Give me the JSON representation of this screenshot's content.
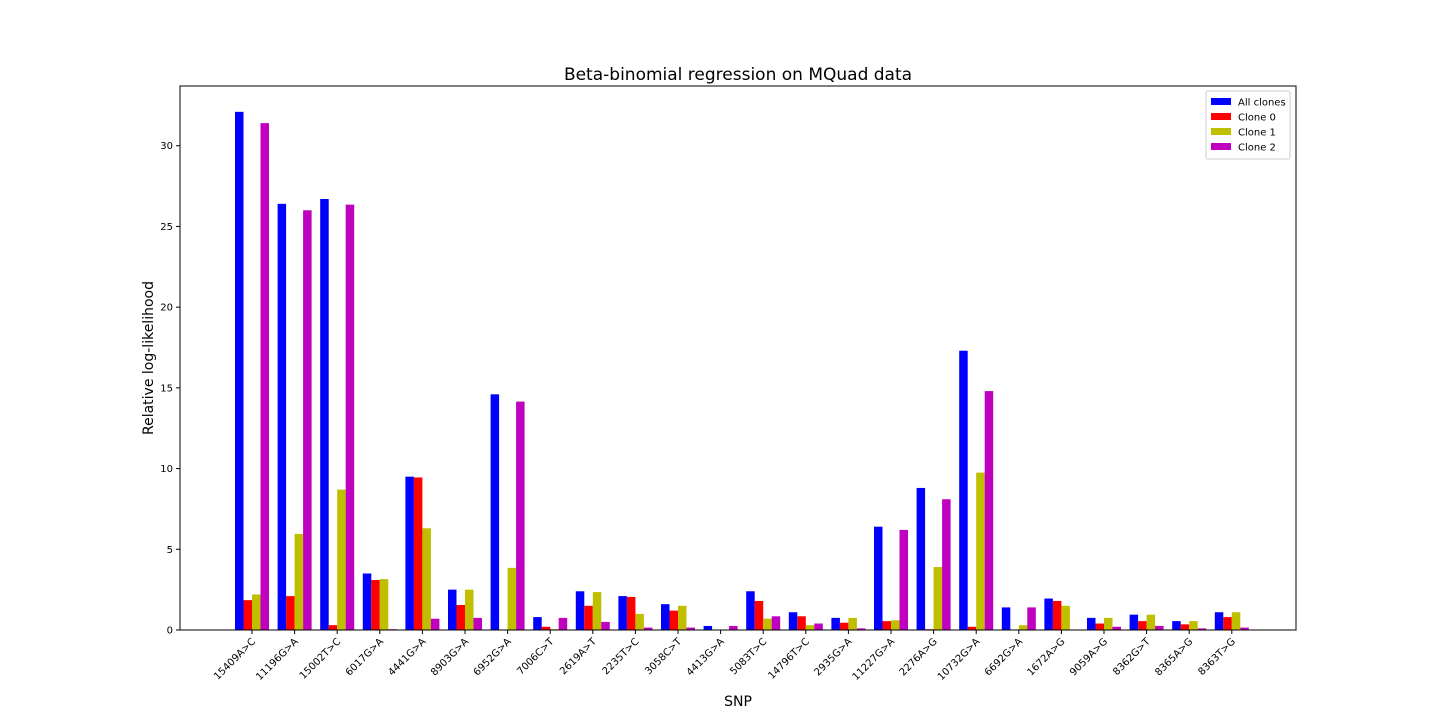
{
  "chart_data": {
    "type": "bar",
    "title": "Beta-binomial regression on MQuad data",
    "xlabel": "SNP",
    "ylabel": "Relative log-likelihood",
    "ylim": [
      0,
      33.7
    ],
    "yticks": [
      0,
      5,
      10,
      15,
      20,
      25,
      30
    ],
    "grid": false,
    "legend_position": "upper right",
    "categories": [
      "15409A>C",
      "11196G>A",
      "15002T>C",
      "6017G>A",
      "4441G>A",
      "8903G>A",
      "6952G>A",
      "7006C>T",
      "2619A>T",
      "2235T>C",
      "3058C>T",
      "4413G>A",
      "5083T>C",
      "14796T>C",
      "2935G>A",
      "11227G>A",
      "2276A>G",
      "10732G>A",
      "6692G>A",
      "1672A>G",
      "9059A>G",
      "8362G>T",
      "8365A>G",
      "8363T>G"
    ],
    "series": [
      {
        "name": "All clones",
        "color": "#0000ff",
        "values": [
          32.1,
          26.4,
          26.7,
          3.5,
          9.5,
          2.5,
          14.6,
          0.8,
          2.4,
          2.1,
          1.6,
          0.25,
          2.4,
          1.1,
          0.75,
          6.4,
          8.8,
          17.3,
          1.4,
          1.95,
          0.75,
          0.95,
          0.55,
          1.1
        ]
      },
      {
        "name": "Clone 0",
        "color": "#ff0000",
        "values": [
          1.85,
          2.1,
          0.3,
          3.1,
          9.45,
          1.55,
          0.0,
          0.2,
          1.5,
          2.05,
          1.2,
          0.0,
          1.8,
          0.85,
          0.45,
          0.55,
          0.05,
          0.2,
          0.0,
          1.8,
          0.4,
          0.55,
          0.35,
          0.8
        ]
      },
      {
        "name": "Clone 1",
        "color": "#bfbf00",
        "values": [
          2.2,
          5.95,
          8.7,
          3.15,
          6.3,
          2.5,
          3.85,
          0.05,
          2.35,
          1.0,
          1.5,
          0.0,
          0.7,
          0.3,
          0.75,
          0.6,
          3.9,
          9.75,
          0.3,
          1.5,
          0.75,
          0.95,
          0.55,
          1.1
        ]
      },
      {
        "name": "Clone 2",
        "color": "#bf00bf",
        "values": [
          31.4,
          26.0,
          26.35,
          0.05,
          0.7,
          0.75,
          14.15,
          0.75,
          0.5,
          0.15,
          0.15,
          0.25,
          0.85,
          0.4,
          0.1,
          6.2,
          8.1,
          14.8,
          1.4,
          0.0,
          0.2,
          0.25,
          0.1,
          0.15
        ]
      }
    ]
  }
}
